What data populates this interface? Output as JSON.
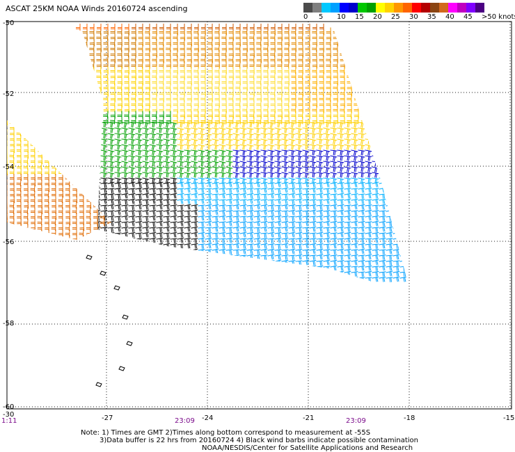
{
  "title": "ASCAT 25KM NOAA Winds 20160724 ascending",
  "colors": {
    "scale": [
      "#4b4b4b",
      "#7f7f7f",
      "#00c8ff",
      "#00a0ff",
      "#0000ff",
      "#0000cc",
      "#00c800",
      "#00a000",
      "#ffff00",
      "#ffd200",
      "#ff9600",
      "#ff6400",
      "#ff0000",
      "#b40000",
      "#8b4513",
      "#d2691e",
      "#ff00ff",
      "#c000c0",
      "#8000ff",
      "#4b0082"
    ]
  },
  "legend": {
    "labels": [
      "0",
      "5",
      "10",
      "15",
      "20",
      "25",
      "30",
      "35",
      "40",
      "45",
      ">50 knots"
    ]
  },
  "map": {
    "lat_labels": [
      "-50",
      "-52",
      "-54",
      "-56",
      "-58",
      "-60"
    ],
    "lon_labels": [
      "-30",
      "-27",
      "-24",
      "-21",
      "-18",
      "-15"
    ],
    "time_labels": {
      "left": "1:11",
      "mid": "23:09",
      "right": "23:09"
    }
  },
  "footer": {
    "note_line1": "Note: 1) Times are GMT 2)Times along bottom correspond to measurement at -55S",
    "note_line2": "3)Data buffer is 22 hrs from 20160724 4) Black wind barbs indicate possible contamination",
    "credit": "NOAA/NESDIS/Center for Satellite Applications and Research"
  }
}
